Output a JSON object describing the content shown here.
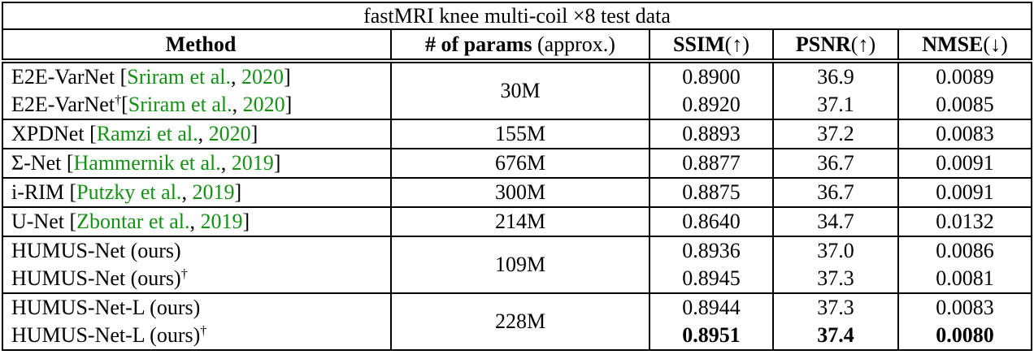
{
  "title": "fastMRI knee multi-coil ×8 test data",
  "header": {
    "method": "Method",
    "params_label": "# of params",
    "params_note": " (approx.)",
    "ssim_label": "SSIM",
    "ssim_arrow": "(↑)",
    "psnr_label": "PSNR",
    "psnr_arrow": "(↑)",
    "nmse_label": "NMSE",
    "nmse_arrow": "(↓)"
  },
  "colors": {
    "citation_green": "#129112",
    "border_black": "#000000",
    "background": "#ffffff"
  },
  "params": [
    "30M",
    "155M",
    "676M",
    "300M",
    "214M",
    "109M",
    "228M"
  ],
  "rows": [
    {
      "name": "E2E-VarNet",
      "dagger": "",
      "c_open": " [",
      "c_name": "Sriram et al.",
      "c_sep": ", ",
      "c_year": "2020",
      "c_close": "]",
      "ssim": "0.8900",
      "psnr": "36.9",
      "nmse": "0.0089"
    },
    {
      "name": "E2E-VarNet",
      "dagger": "†",
      "c_open": "[",
      "c_name": "Sriram et al.",
      "c_sep": ", ",
      "c_year": "2020",
      "c_close": "]",
      "ssim": "0.8920",
      "psnr": "37.1",
      "nmse": "0.0085"
    },
    {
      "name": "XPDNet",
      "dagger": "",
      "c_open": " [",
      "c_name": "Ramzi et al.",
      "c_sep": ", ",
      "c_year": "2020",
      "c_close": "]",
      "ssim": "0.8893",
      "psnr": "37.2",
      "nmse": "0.0083"
    },
    {
      "name": "Σ-Net",
      "dagger": "",
      "c_open": " [",
      "c_name": "Hammernik et al.",
      "c_sep": ", ",
      "c_year": "2019",
      "c_close": "]",
      "ssim": "0.8877",
      "psnr": "36.7",
      "nmse": "0.0091"
    },
    {
      "name": "i-RIM",
      "dagger": "",
      "c_open": " [",
      "c_name": "Putzky et al.",
      "c_sep": ", ",
      "c_year": "2019",
      "c_close": "]",
      "ssim": "0.8875",
      "psnr": "36.7",
      "nmse": "0.0091"
    },
    {
      "name": "U-Net",
      "dagger": "",
      "c_open": " [",
      "c_name": "Zbontar et al.",
      "c_sep": ", ",
      "c_year": "2019",
      "c_close": "]",
      "ssim": "0.8640",
      "psnr": "34.7",
      "nmse": "0.0132"
    },
    {
      "name": "HUMUS-Net (ours)",
      "dagger": "",
      "c_open": "",
      "c_name": "",
      "c_sep": "",
      "c_year": "",
      "c_close": "",
      "ssim": "0.8936",
      "psnr": "37.0",
      "nmse": "0.0086"
    },
    {
      "name": "HUMUS-Net (ours)",
      "dagger": "†",
      "c_open": "",
      "c_name": "",
      "c_sep": "",
      "c_year": "",
      "c_close": "",
      "ssim": "0.8945",
      "psnr": "37.3",
      "nmse": "0.0081"
    },
    {
      "name": "HUMUS-Net-L (ours)",
      "dagger": "",
      "c_open": "",
      "c_name": "",
      "c_sep": "",
      "c_year": "",
      "c_close": "",
      "ssim": "0.8944",
      "psnr": "37.3",
      "nmse": "0.0083"
    },
    {
      "name": "HUMUS-Net-L (ours)",
      "dagger": "†",
      "c_open": "",
      "c_name": "",
      "c_sep": "",
      "c_year": "",
      "c_close": "",
      "ssim": "0.8951",
      "psnr": "37.4",
      "nmse": "0.0080"
    }
  ]
}
